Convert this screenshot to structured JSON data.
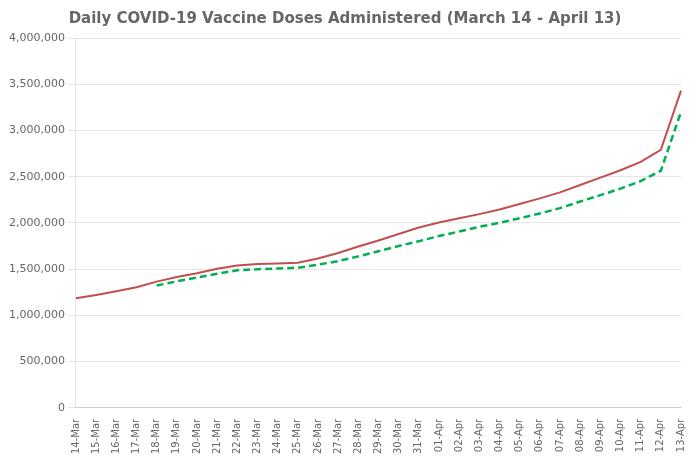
{
  "chart_data": {
    "type": "line",
    "title": "Daily COVID-19 Vaccine Doses Administered (March 14 - April 13)",
    "categories": [
      "14-Mar",
      "15-Mar",
      "16-Mar",
      "17-Mar",
      "18-Mar",
      "19-Mar",
      "20-Mar",
      "21-Mar",
      "22-Mar",
      "23-Mar",
      "24-Mar",
      "25-Mar",
      "26-Mar",
      "27-Mar",
      "28-Mar",
      "29-Mar",
      "30-Mar",
      "31-Mar",
      "01-Apr",
      "02-Apr",
      "03-Apr",
      "04-Apr",
      "05-Apr",
      "06-Apr",
      "07-Apr",
      "08-Apr",
      "09-Apr",
      "10-Apr",
      "11-Apr",
      "12-Apr",
      "13-Apr"
    ],
    "series": [
      {
        "color": "#C0504D",
        "line_style": "solid",
        "values": [
          1185000,
          1220000,
          1260000,
          1305000,
          1365000,
          1415000,
          1455000,
          1505000,
          1540000,
          1555000,
          1560000,
          1568000,
          1615000,
          1675000,
          1745000,
          1810000,
          1880000,
          1950000,
          2005000,
          2050000,
          2095000,
          2145000,
          2205000,
          2265000,
          2330000,
          2410000,
          2490000,
          2570000,
          2660000,
          2790000,
          3430000
        ]
      },
      {
        "color": "#00B050",
        "line_style": "dashed",
        "values": [
          null,
          null,
          null,
          null,
          1322000,
          1368000,
          1410000,
          1450000,
          1487000,
          1499000,
          1507000,
          1515000,
          1548000,
          1587000,
          1638000,
          1694000,
          1750000,
          1802000,
          1858000,
          1907000,
          1958000,
          2001000,
          2050000,
          2102000,
          2160000,
          2231000,
          2300000,
          2371000,
          2452000,
          2564000,
          3200000
        ]
      }
    ],
    "ylim": [
      0,
      4000000
    ],
    "yticks": [
      0,
      {
        "value": 500000,
        "label": "500,000"
      },
      {
        "value": 1000000,
        "label": "1,000,000"
      },
      {
        "value": 1500000,
        "label": "1,500,000"
      },
      {
        "value": 2000000,
        "label": "2,000,000"
      },
      {
        "value": 2500000,
        "label": "2,500,000"
      },
      {
        "value": 3000000,
        "label": "3,000,000"
      },
      {
        "value": 3500000,
        "label": "3,500,000"
      },
      {
        "value": 4000000,
        "label": "4,000,000"
      }
    ],
    "grid": "y"
  }
}
